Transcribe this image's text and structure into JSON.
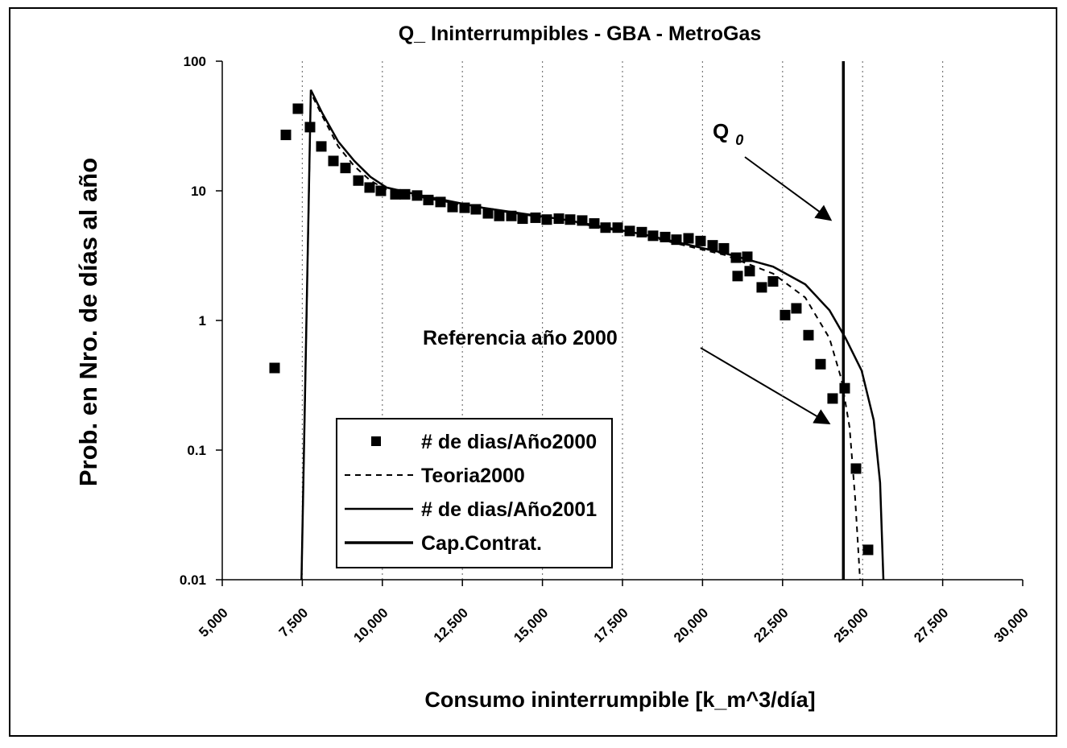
{
  "chart_data": {
    "type": "line",
    "title": "Q_ Ininterrumpibles - GBA - MetroGas",
    "x_label": "Consumo ininterrumpible [k_m^3/día]",
    "y_label": "Prob. en Nro. de días al año",
    "log_y": true,
    "grid_x": true,
    "xlim": [
      5000,
      30000
    ],
    "xticks": [
      {
        "value": 5000,
        "label": "5,000"
      },
      {
        "value": 7500,
        "label": "7,500"
      },
      {
        "value": 10000,
        "label": "10,000"
      },
      {
        "value": 12500,
        "label": "12,500"
      },
      {
        "value": 15000,
        "label": "15,000"
      },
      {
        "value": 17500,
        "label": "17,500"
      },
      {
        "value": 20000,
        "label": "20,000"
      },
      {
        "value": 22500,
        "label": "22,500"
      },
      {
        "value": 25000,
        "label": "25,000"
      },
      {
        "value": 27500,
        "label": "27,500"
      },
      {
        "value": 30000,
        "label": "30,000"
      }
    ],
    "ylim": [
      0.01,
      100
    ],
    "yticks": [
      0.01,
      0.1,
      1,
      10,
      100
    ],
    "series": [
      {
        "name": "# de dias/Año2000",
        "style": "marker",
        "color": "#000000",
        "x": [
          6635,
          6987,
          7364,
          7741,
          8094,
          8471,
          8848,
          9250,
          9602,
          9954,
          10407,
          10709,
          11086,
          11438,
          11816,
          12193,
          12570,
          12922,
          13300,
          13652,
          14029,
          14381,
          14784,
          15135,
          15513,
          15865,
          16242,
          16619,
          16971,
          17349,
          17726,
          18103,
          18455,
          18833,
          19185,
          19562,
          19939,
          20316,
          20668,
          21046,
          21096,
          21398,
          21473,
          21850,
          22202,
          22579,
          22931,
          23309,
          23686,
          24063,
          24441,
          24793,
          25170
        ],
        "values": [
          0.43,
          27,
          43,
          31,
          22,
          17,
          15,
          12,
          10.6,
          10,
          9.4,
          9.4,
          9.2,
          8.5,
          8.2,
          7.5,
          7.4,
          7.2,
          6.7,
          6.4,
          6.4,
          6.1,
          6.2,
          6.0,
          6.1,
          6.0,
          5.9,
          5.6,
          5.2,
          5.2,
          4.9,
          4.8,
          4.5,
          4.4,
          4.2,
          4.3,
          4.1,
          3.8,
          3.6,
          3.05,
          2.2,
          3.1,
          2.4,
          1.8,
          2.0,
          1.1,
          1.24,
          0.77,
          0.46,
          0.25,
          0.3,
          0.072,
          0.017
        ]
      },
      {
        "name": "Teoria2000",
        "style": "dashed",
        "color": "#000000",
        "x": [
          7475,
          7766,
          8119,
          8622,
          9124,
          9627,
          10130,
          11136,
          13149,
          15664,
          18179,
          20694,
          22202,
          23208,
          23963,
          24340,
          24592,
          24768,
          24919
        ],
        "values": [
          0.01,
          57,
          38,
          22,
          15.5,
          12,
          10.2,
          9.0,
          7.3,
          5.9,
          4.5,
          3.2,
          2.3,
          1.5,
          0.73,
          0.35,
          0.15,
          0.042,
          0.01
        ]
      },
      {
        "name": "# de dias/Año2001",
        "style": "solid",
        "color": "#000000",
        "x": [
          7475,
          7766,
          8119,
          8622,
          9124,
          9627,
          10130,
          11136,
          13149,
          15664,
          18179,
          20694,
          22202,
          23208,
          23963,
          24466,
          24969,
          25346,
          25547,
          25648
        ],
        "values": [
          0.01,
          60,
          40,
          24,
          17,
          12.8,
          10.6,
          9.3,
          7.4,
          6.0,
          4.6,
          3.3,
          2.6,
          1.9,
          1.2,
          0.73,
          0.41,
          0.17,
          0.056,
          0.01
        ]
      },
      {
        "name": "Cap.Contrat.",
        "style": "solid-thick",
        "color": "#000000",
        "x": [
          24400,
          24400
        ],
        "values": [
          0.01,
          100
        ]
      }
    ],
    "annotations": [
      {
        "text": "Q",
        "sub": "0"
      },
      {
        "text": "Referencia año 2000"
      }
    ]
  }
}
